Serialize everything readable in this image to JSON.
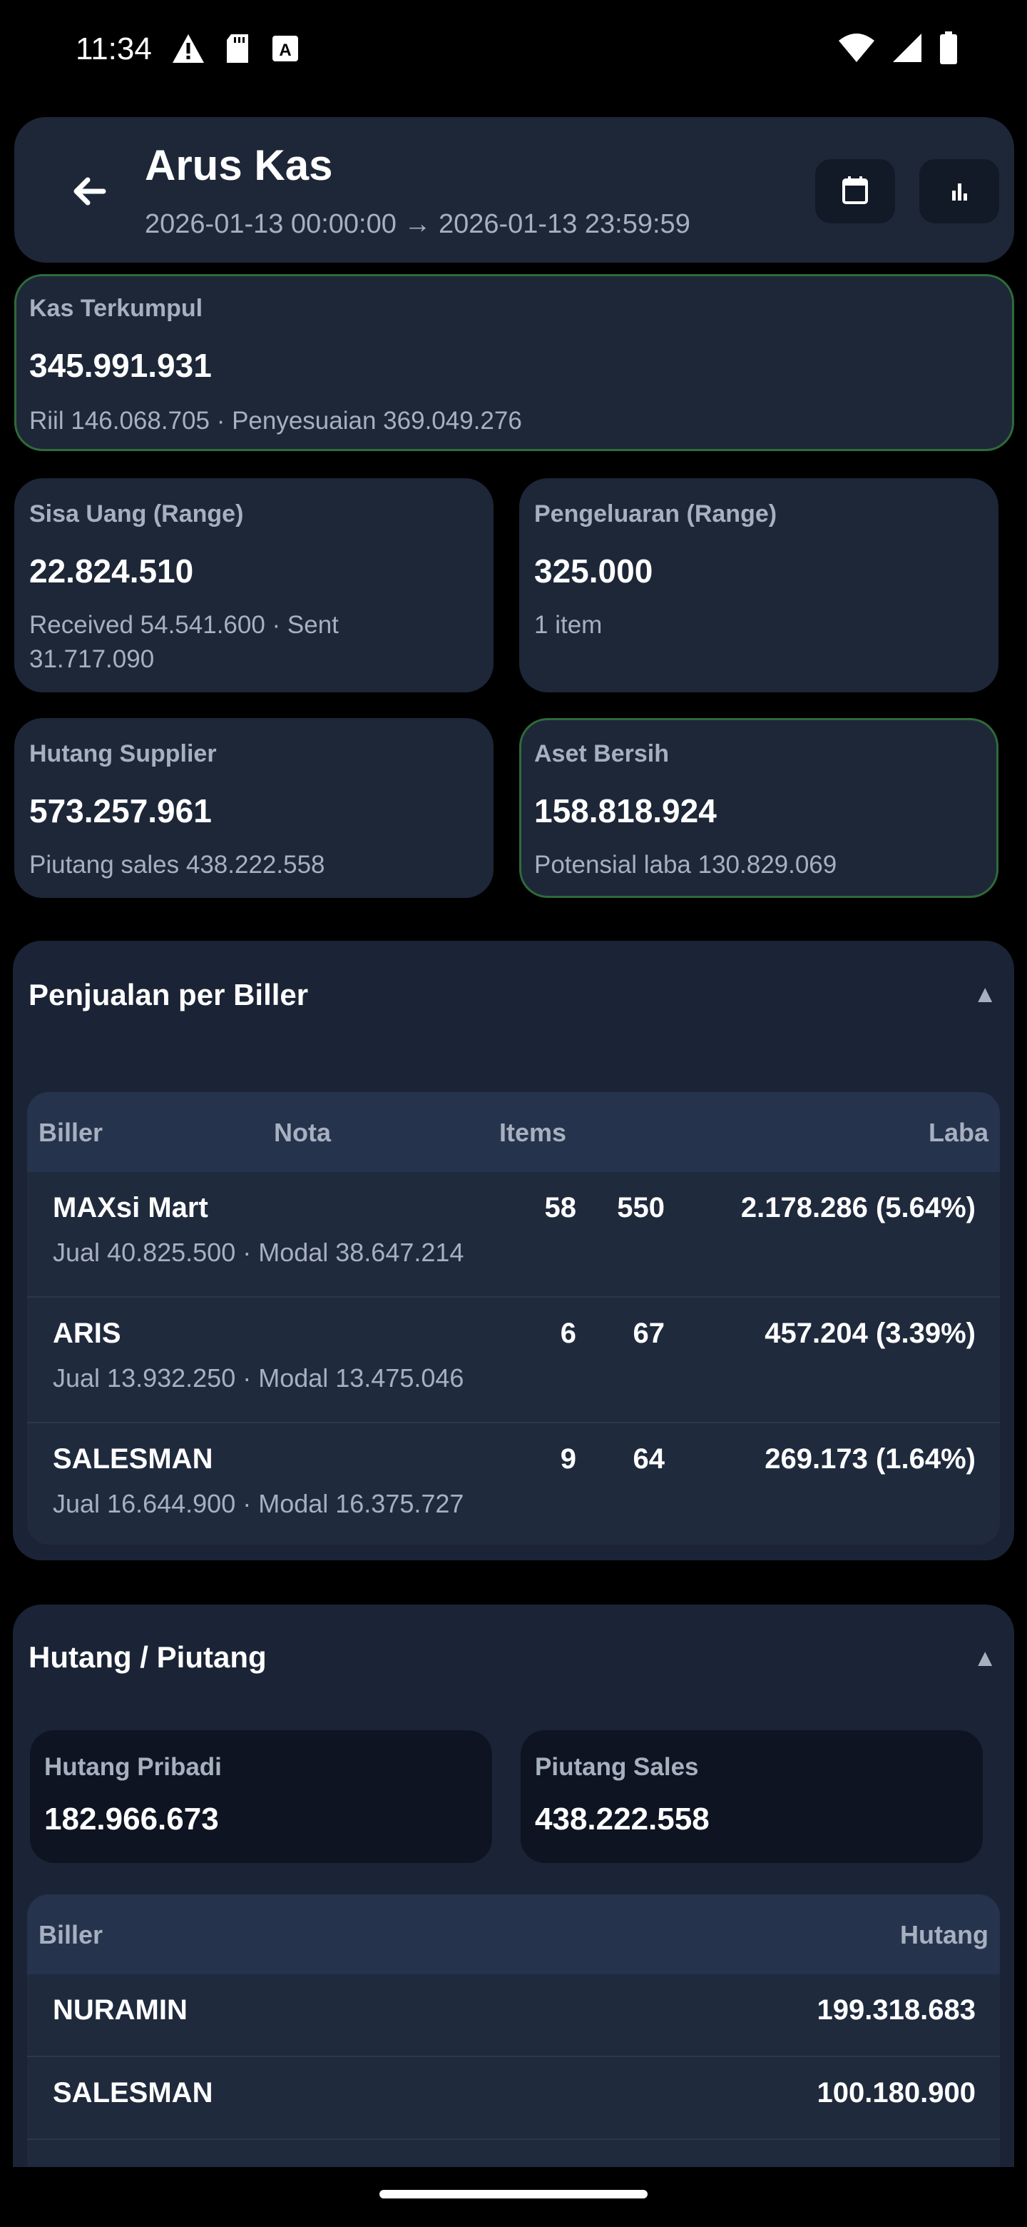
{
  "status": {
    "time": "11:34"
  },
  "header": {
    "title": "Arus Kas",
    "date_range": "2026-01-13 00:00:00 → 2026-01-13 23:59:59"
  },
  "summary": {
    "kas_terkumpul": {
      "label": "Kas Terkumpul",
      "value": "345.991.931",
      "sub": "Riil 146.068.705 · Penyesuaian 369.049.276"
    },
    "sisa_uang": {
      "label": "Sisa Uang (Range)",
      "value": "22.824.510",
      "sub_line1": "Received 54.541.600 · Sent",
      "sub_line2": "31.717.090"
    },
    "pengeluaran": {
      "label": "Pengeluaran (Range)",
      "value": "325.000",
      "sub": "1 item"
    },
    "hutang_supplier": {
      "label": "Hutang Supplier",
      "value": "573.257.961",
      "sub": "Piutang sales 438.222.558"
    },
    "aset_bersih": {
      "label": "Aset Bersih",
      "value": "158.818.924",
      "sub": "Potensial laba 130.829.069"
    }
  },
  "penjualan": {
    "title": "Penjualan per Biller",
    "toggle": "▲",
    "columns": {
      "biller": "Biller",
      "nota": "Nota",
      "items": "Items",
      "laba": "Laba"
    },
    "rows": [
      {
        "name": "MAXsi Mart",
        "detail": "Jual 40.825.500 · Modal 38.647.214",
        "nota": "58",
        "items": "550",
        "laba": "2.178.286 (5.64%)"
      },
      {
        "name": "ARIS",
        "detail": "Jual 13.932.250 · Modal 13.475.046",
        "nota": "6",
        "items": "67",
        "laba": "457.204 (3.39%)"
      },
      {
        "name": "SALESMAN",
        "detail": "Jual 16.644.900 · Modal 16.375.727",
        "nota": "9",
        "items": "64",
        "laba": "269.173 (1.64%)"
      }
    ]
  },
  "hutang_piutang": {
    "title": "Hutang / Piutang",
    "toggle": "▲",
    "hutang_pribadi": {
      "label": "Hutang Pribadi",
      "value": "182.966.673"
    },
    "piutang_sales": {
      "label": "Piutang Sales",
      "value": "438.222.558"
    },
    "columns": {
      "biller": "Biller",
      "hutang": "Hutang"
    },
    "rows": [
      {
        "name": "NURAMIN",
        "hutang": "199.318.683"
      },
      {
        "name": "SALESMAN",
        "hutang": "100.180.900"
      }
    ]
  },
  "colors": {
    "background": "#000000",
    "card": "#1e2738",
    "accent_border": "#2e6b3a",
    "muted_text": "#a7b0bf"
  }
}
